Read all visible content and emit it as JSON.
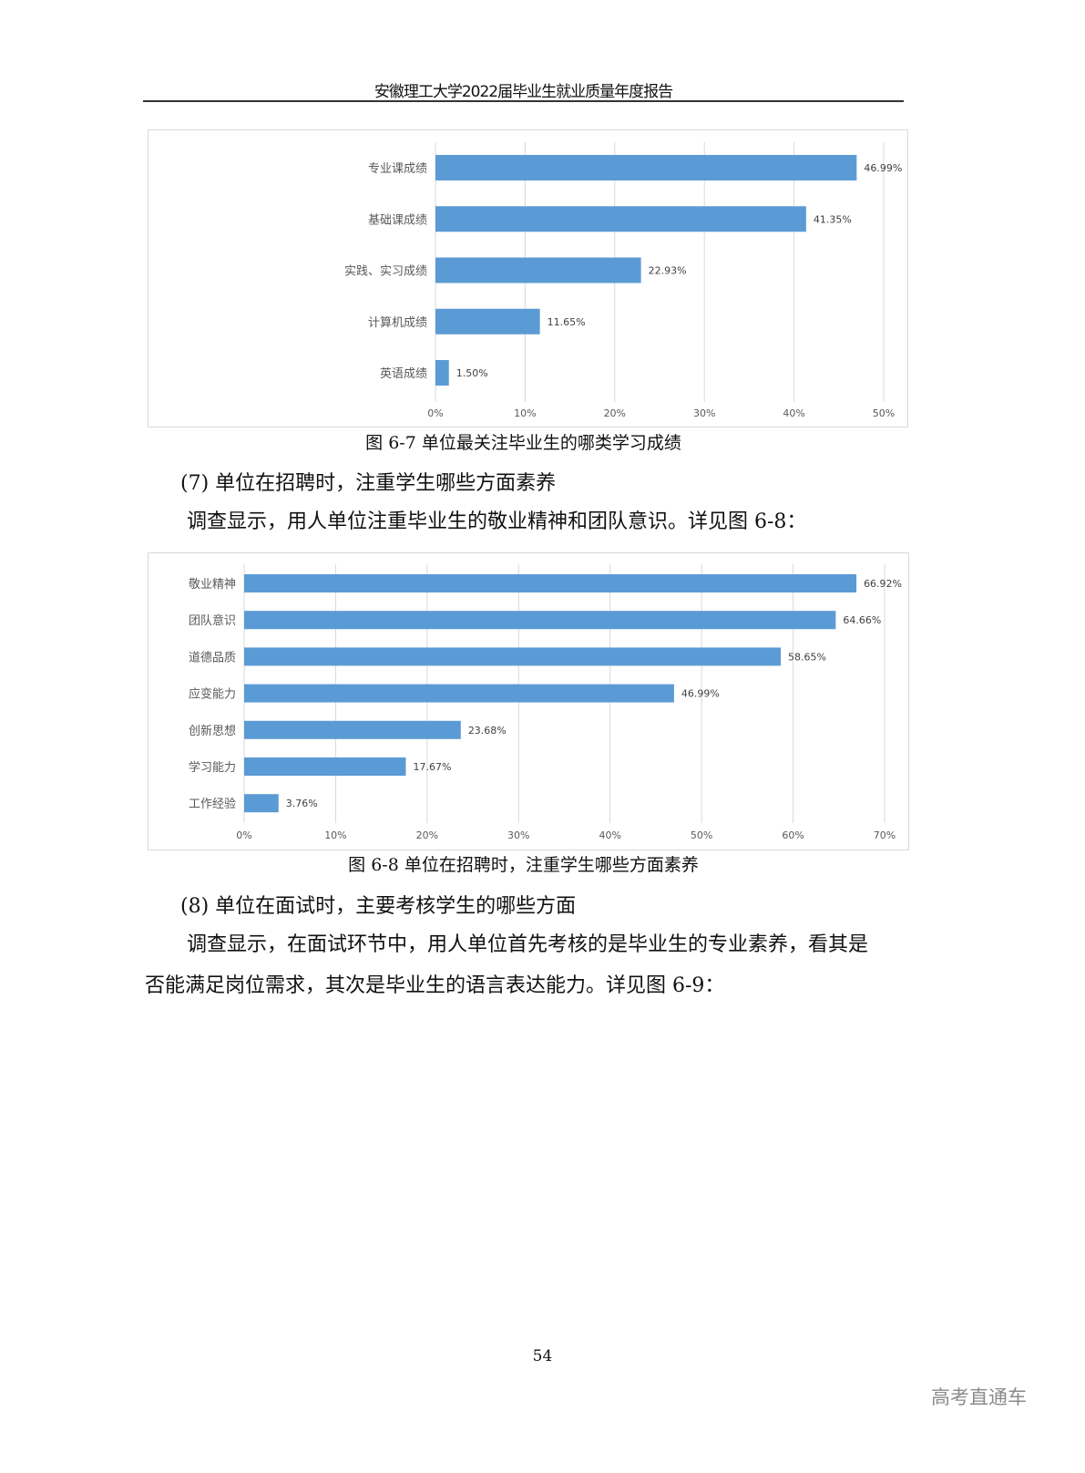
{
  "header": {
    "title": "安徽理工大学2022届毕业生就业质量年度报告"
  },
  "chart_data": [
    {
      "type": "bar",
      "orientation": "horizontal",
      "categories": [
        "专业课成绩",
        "基础课成绩",
        "实践、实习成绩",
        "计算机成绩",
        "英语成绩"
      ],
      "values": [
        46.99,
        41.35,
        22.93,
        11.65,
        1.5
      ],
      "data_labels": [
        "46.99%",
        "41.35%",
        "22.93%",
        "11.65%",
        "1.50%"
      ],
      "xlim": [
        0,
        50
      ],
      "ticks": [
        "0%",
        "10%",
        "20%",
        "30%",
        "40%",
        "50%"
      ],
      "grid": true,
      "color": "#5b9bd5"
    },
    {
      "type": "bar",
      "orientation": "horizontal",
      "categories": [
        "敬业精神",
        "团队意识",
        "道德品质",
        "应变能力",
        "创新思想",
        "学习能力",
        "工作经验"
      ],
      "values": [
        66.92,
        64.66,
        58.65,
        46.99,
        23.68,
        17.67,
        3.76
      ],
      "data_labels": [
        "66.92%",
        "64.66%",
        "58.65%",
        "46.99%",
        "23.68%",
        "17.67%",
        "3.76%"
      ],
      "xlim": [
        0,
        70
      ],
      "ticks": [
        "0%",
        "10%",
        "20%",
        "30%",
        "40%",
        "50%",
        "60%",
        "70%"
      ],
      "grid": true,
      "color": "#5b9bd5"
    }
  ],
  "captions": {
    "fig67": "图 6-7  单位最关注毕业生的哪类学习成绩",
    "fig68": "图 6-8  单位在招聘时，注重学生哪些方面素养"
  },
  "sections": {
    "s7_heading": "(7) 单位在招聘时，注重学生哪些方面素养",
    "s7_para": "调查显示，用人单位注重毕业生的敬业精神和团队意识。详见图 6-8：",
    "s8_heading": "(8) 单位在面试时，主要考核学生的哪些方面",
    "s8_para_line1": "调查显示，在面试环节中，用人单位首先考核的是毕业生的专业素养，看其是",
    "s8_para_line2": "否能满足岗位需求，其次是毕业生的语言表达能力。详见图 6-9："
  },
  "footer": {
    "page_number": "54"
  },
  "watermark": "高考直通车"
}
